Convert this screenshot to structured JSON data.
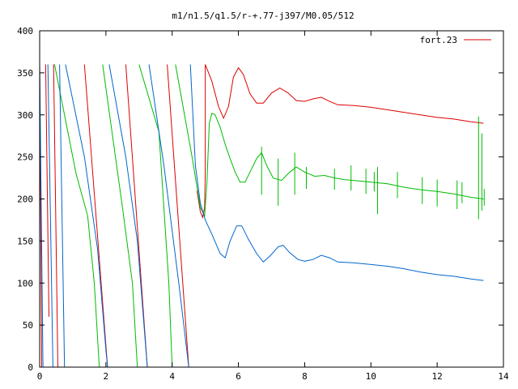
{
  "chart_data": {
    "type": "line",
    "title": "m1/n1.5/q1.5/r-+.77-j397/M0.05/512",
    "xlabel": "",
    "ylabel": "",
    "xlim": [
      0,
      14
    ],
    "ylim": [
      0,
      400
    ],
    "xticks": [
      0,
      2,
      4,
      6,
      8,
      10,
      12,
      14
    ],
    "yticks": [
      0,
      50,
      100,
      150,
      200,
      250,
      300,
      350,
      400
    ],
    "grid": false,
    "legend_position": "top-right",
    "series": [
      {
        "name": "fort.23",
        "color": "#dd0000",
        "segments": [
          [
            [
              0.0,
              360
            ],
            [
              0.06,
              0
            ]
          ],
          [
            [
              0.18,
              360
            ],
            [
              0.28,
              60
            ]
          ],
          [
            [
              0.42,
              360
            ],
            [
              0.55,
              0
            ]
          ],
          [
            [
              1.35,
              360
            ],
            [
              2.05,
              0
            ]
          ],
          [
            [
              2.6,
              360
            ],
            [
              3.25,
              0
            ]
          ],
          [
            [
              3.85,
              360
            ],
            [
              4.5,
              0
            ]
          ],
          [
            [
              4.75,
              210
            ],
            [
              4.85,
              185
            ],
            [
              4.92,
              178
            ],
            [
              4.98,
              190
            ],
            [
              5.0,
              230
            ],
            [
              5.0,
              360
            ]
          ],
          [
            [
              5.0,
              360
            ],
            [
              5.2,
              340
            ],
            [
              5.4,
              310
            ],
            [
              5.55,
              296
            ],
            [
              5.7,
              310
            ],
            [
              5.85,
              345
            ],
            [
              6.0,
              356
            ],
            [
              6.15,
              348
            ],
            [
              6.35,
              325
            ],
            [
              6.55,
              314
            ],
            [
              6.75,
              314
            ],
            [
              7.0,
              326
            ],
            [
              7.25,
              332
            ],
            [
              7.5,
              326
            ],
            [
              7.75,
              317
            ],
            [
              8.0,
              316
            ],
            [
              8.25,
              319
            ],
            [
              8.5,
              321
            ],
            [
              8.75,
              316
            ],
            [
              9.0,
              312
            ],
            [
              9.5,
              311
            ],
            [
              10.0,
              309
            ],
            [
              10.5,
              306
            ],
            [
              11.0,
              303
            ],
            [
              11.5,
              300
            ],
            [
              12.0,
              297
            ],
            [
              12.5,
              295
            ],
            [
              13.0,
              292
            ],
            [
              13.4,
              290
            ]
          ]
        ]
      },
      {
        "name": "",
        "color": "#00bb00",
        "segments": [
          [
            [
              0.45,
              360
            ],
            [
              1.1,
              230
            ],
            [
              1.45,
              180
            ],
            [
              1.65,
              100
            ],
            [
              1.8,
              0
            ]
          ],
          [
            [
              1.9,
              360
            ],
            [
              2.5,
              190
            ],
            [
              2.8,
              100
            ],
            [
              2.95,
              0
            ]
          ],
          [
            [
              3.0,
              360
            ],
            [
              3.6,
              280
            ],
            [
              3.9,
              100
            ],
            [
              4.0,
              0
            ]
          ],
          [
            [
              4.1,
              360
            ],
            [
              4.6,
              250
            ],
            [
              4.85,
              190
            ],
            [
              4.98,
              180
            ],
            [
              5.05,
              220
            ],
            [
              5.12,
              290
            ],
            [
              5.2,
              302
            ],
            [
              5.3,
              300
            ],
            [
              5.45,
              285
            ],
            [
              5.6,
              265
            ],
            [
              5.75,
              248
            ],
            [
              5.9,
              232
            ],
            [
              6.05,
              220
            ],
            [
              6.2,
              220
            ],
            [
              6.35,
              232
            ],
            [
              6.55,
              248
            ],
            [
              6.7,
              255
            ],
            [
              6.85,
              240
            ],
            [
              7.05,
              225
            ],
            [
              7.3,
              222
            ],
            [
              7.55,
              232
            ],
            [
              7.75,
              238
            ],
            [
              8.0,
              232
            ],
            [
              8.3,
              227
            ],
            [
              8.6,
              228
            ],
            [
              8.9,
              225
            ],
            [
              9.2,
              223
            ],
            [
              9.5,
              222
            ],
            [
              10.0,
              220
            ],
            [
              10.5,
              218
            ],
            [
              11.0,
              214
            ],
            [
              11.5,
              211
            ],
            [
              12.0,
              209
            ],
            [
              12.5,
              206
            ],
            [
              13.0,
              202
            ],
            [
              13.4,
              200
            ]
          ]
        ],
        "spikes": [
          [
            6.7,
            205,
            262
          ],
          [
            7.2,
            192,
            248
          ],
          [
            7.7,
            205,
            255
          ],
          [
            8.05,
            212,
            238
          ],
          [
            8.9,
            211,
            236
          ],
          [
            9.4,
            210,
            240
          ],
          [
            9.85,
            206,
            236
          ],
          [
            10.1,
            209,
            232
          ],
          [
            10.2,
            182,
            238
          ],
          [
            10.8,
            201,
            232
          ],
          [
            11.55,
            194,
            226
          ],
          [
            12.0,
            191,
            223
          ],
          [
            12.6,
            188,
            222
          ],
          [
            12.75,
            195,
            220
          ],
          [
            13.25,
            176,
            298
          ],
          [
            13.35,
            186,
            278
          ],
          [
            13.42,
            192,
            212
          ]
        ]
      },
      {
        "name": "",
        "color": "#0066cc",
        "segments": [
          [
            [
              0.0,
              360
            ],
            [
              0.1,
              0
            ]
          ],
          [
            [
              0.25,
              360
            ],
            [
              0.4,
              0
            ]
          ],
          [
            [
              0.6,
              360
            ],
            [
              0.75,
              0
            ]
          ],
          [
            [
              0.78,
              360
            ],
            [
              1.35,
              250
            ],
            [
              1.75,
              140
            ],
            [
              2.0,
              20
            ],
            [
              2.05,
              0
            ]
          ],
          [
            [
              2.1,
              360
            ],
            [
              2.6,
              250
            ],
            [
              2.95,
              150
            ],
            [
              3.25,
              0
            ]
          ],
          [
            [
              3.3,
              360
            ],
            [
              3.75,
              240
            ],
            [
              4.2,
              100
            ],
            [
              4.5,
              0
            ]
          ],
          [
            [
              4.55,
              360
            ],
            [
              4.7,
              240
            ],
            [
              4.85,
              195
            ],
            [
              5.0,
              175
            ],
            [
              5.2,
              158
            ],
            [
              5.45,
              135
            ],
            [
              5.6,
              130
            ],
            [
              5.75,
              150
            ],
            [
              5.95,
              168
            ],
            [
              6.1,
              168
            ],
            [
              6.3,
              152
            ],
            [
              6.55,
              135
            ],
            [
              6.75,
              125
            ],
            [
              6.95,
              132
            ],
            [
              7.2,
              143
            ],
            [
              7.35,
              145
            ],
            [
              7.55,
              136
            ],
            [
              7.8,
              128
            ],
            [
              8.0,
              126
            ],
            [
              8.25,
              128
            ],
            [
              8.5,
              133
            ],
            [
              8.75,
              130
            ],
            [
              9.0,
              125
            ],
            [
              9.5,
              124
            ],
            [
              10.0,
              122
            ],
            [
              10.5,
              120
            ],
            [
              11.0,
              117
            ],
            [
              11.5,
              113
            ],
            [
              12.0,
              110
            ],
            [
              12.5,
              108
            ],
            [
              13.0,
              105
            ],
            [
              13.4,
              103
            ]
          ]
        ]
      }
    ]
  }
}
